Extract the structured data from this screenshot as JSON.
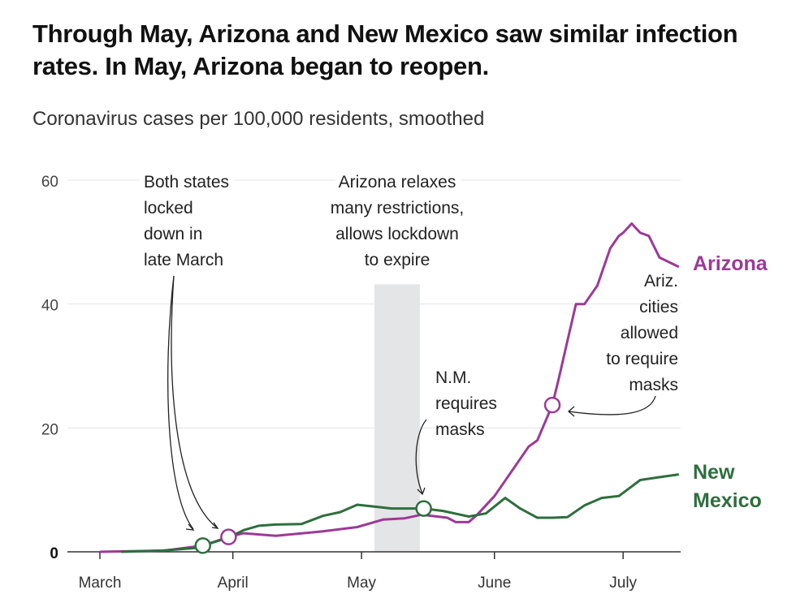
{
  "chart_data": {
    "type": "line",
    "title": "Through May, Arizona and New Mexico saw similar infection rates. In May, Arizona began to reopen.",
    "subtitle": "Coronavirus cases per 100,000 residents, smoothed",
    "xlabel": "",
    "ylabel": "",
    "x_unit": "days since March 1",
    "xlim": [
      -7.5,
      135
    ],
    "ylim": [
      0,
      60
    ],
    "yticks": [
      0,
      20,
      40,
      60
    ],
    "ytick_labels": [
      "0",
      "20",
      "40",
      "60"
    ],
    "xticks": [
      0,
      31,
      61,
      92,
      122
    ],
    "xtick_labels": [
      "March",
      "April",
      "May",
      "June",
      "July"
    ],
    "grid": true,
    "shaded_range": [
      64,
      74.6
    ],
    "shaded_top": 43.2,
    "series": [
      {
        "name": "Arizona",
        "label": "Arizona",
        "color": "#9b3a96",
        "x": [
          0,
          15,
          24,
          30,
          33.5,
          41,
          52,
          60,
          66,
          71,
          75,
          81,
          83,
          86,
          88,
          92,
          96,
          100,
          102,
          105.5,
          107,
          109,
          111,
          113,
          116,
          119,
          121,
          122,
          124,
          126,
          128,
          130.5,
          135
        ],
        "y": [
          0,
          0.2,
          1,
          2.4,
          3,
          2.6,
          3.3,
          4,
          5.2,
          5.4,
          6,
          5.5,
          4.8,
          4.8,
          6,
          9,
          13,
          17,
          18,
          23.7,
          28,
          34,
          40,
          40,
          43,
          49,
          51,
          51.5,
          53,
          51.5,
          51,
          47.5,
          46
        ]
      },
      {
        "name": "New Mexico",
        "label_lines": [
          "New",
          "Mexico"
        ],
        "color": "#2e6e3e",
        "x": [
          5,
          14.5,
          22,
          24,
          30,
          33.5,
          37,
          41,
          47,
          52,
          56,
          60,
          64,
          68,
          71,
          75.5,
          80,
          86,
          90,
          94.5,
          98,
          102,
          105.5,
          109,
          113,
          117,
          121,
          126,
          130,
          135
        ],
        "y": [
          0,
          0.2,
          0.6,
          1,
          2.3,
          3.5,
          4.2,
          4.4,
          4.5,
          5.8,
          6.4,
          7.6,
          7.3,
          7,
          7,
          7,
          6.6,
          5.7,
          6.2,
          8.7,
          7,
          5.5,
          5.5,
          5.6,
          7.5,
          8.7,
          9,
          11.6,
          12,
          12.5
        ]
      }
    ],
    "markers": [
      {
        "series": "New Mexico",
        "x": 24,
        "y": 1
      },
      {
        "series": "Arizona",
        "x": 30,
        "y": 2.4
      },
      {
        "series": "New Mexico",
        "x": 75.5,
        "y": 7
      },
      {
        "series": "Arizona",
        "x": 105.5,
        "y": 23.7
      }
    ],
    "annotations": [
      {
        "id": "lockdown",
        "lines": [
          "Both states",
          "locked",
          "down in",
          "late March"
        ]
      },
      {
        "id": "relax",
        "lines": [
          "Arizona relaxes",
          "many restrictions,",
          "allows lockdown",
          "to expire"
        ]
      },
      {
        "id": "nm-masks",
        "lines": [
          "N.M.",
          "requires",
          "masks"
        ]
      },
      {
        "id": "az-masks",
        "lines": [
          "Ariz.",
          "cities",
          "allowed",
          "to require",
          "masks"
        ]
      }
    ]
  }
}
